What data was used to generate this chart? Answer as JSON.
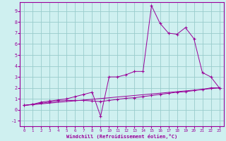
{
  "title": "",
  "xlabel": "Windchill (Refroidissement éolien,°C)",
  "background_color": "#cff0f0",
  "grid_color": "#99cccc",
  "line_color": "#990099",
  "xlim": [
    -0.5,
    23.5
  ],
  "ylim": [
    -1.5,
    9.8
  ],
  "xticks": [
    0,
    1,
    2,
    3,
    4,
    5,
    6,
    7,
    8,
    9,
    10,
    11,
    12,
    13,
    14,
    15,
    16,
    17,
    18,
    19,
    20,
    21,
    22,
    23
  ],
  "yticks": [
    -1,
    0,
    1,
    2,
    3,
    4,
    5,
    6,
    7,
    8,
    9
  ],
  "line1_x": [
    0,
    1,
    2,
    3,
    4,
    5,
    6,
    7,
    8,
    9,
    10,
    11,
    12,
    13,
    14,
    15,
    16,
    17,
    18,
    19,
    20,
    21,
    22,
    23
  ],
  "line1_y": [
    0.4,
    0.5,
    0.6,
    0.7,
    0.8,
    0.85,
    0.85,
    0.85,
    0.8,
    0.75,
    0.85,
    0.95,
    1.05,
    1.1,
    1.2,
    1.3,
    1.4,
    1.5,
    1.6,
    1.65,
    1.75,
    1.85,
    2.0,
    2.0
  ],
  "line2_x": [
    0,
    23
  ],
  "line2_y": [
    0.4,
    2.0
  ],
  "line3_x": [
    0,
    1,
    2,
    3,
    4,
    5,
    6,
    7,
    8,
    9,
    10,
    11,
    12,
    13,
    14,
    15,
    16,
    17,
    18,
    19,
    20,
    21,
    22,
    23
  ],
  "line3_y": [
    0.4,
    0.5,
    0.7,
    0.8,
    0.9,
    1.0,
    1.2,
    1.4,
    1.6,
    -0.6,
    3.0,
    3.0,
    3.2,
    3.5,
    3.5,
    9.5,
    7.9,
    7.0,
    6.9,
    7.5,
    6.5,
    3.4,
    3.0,
    2.0
  ]
}
